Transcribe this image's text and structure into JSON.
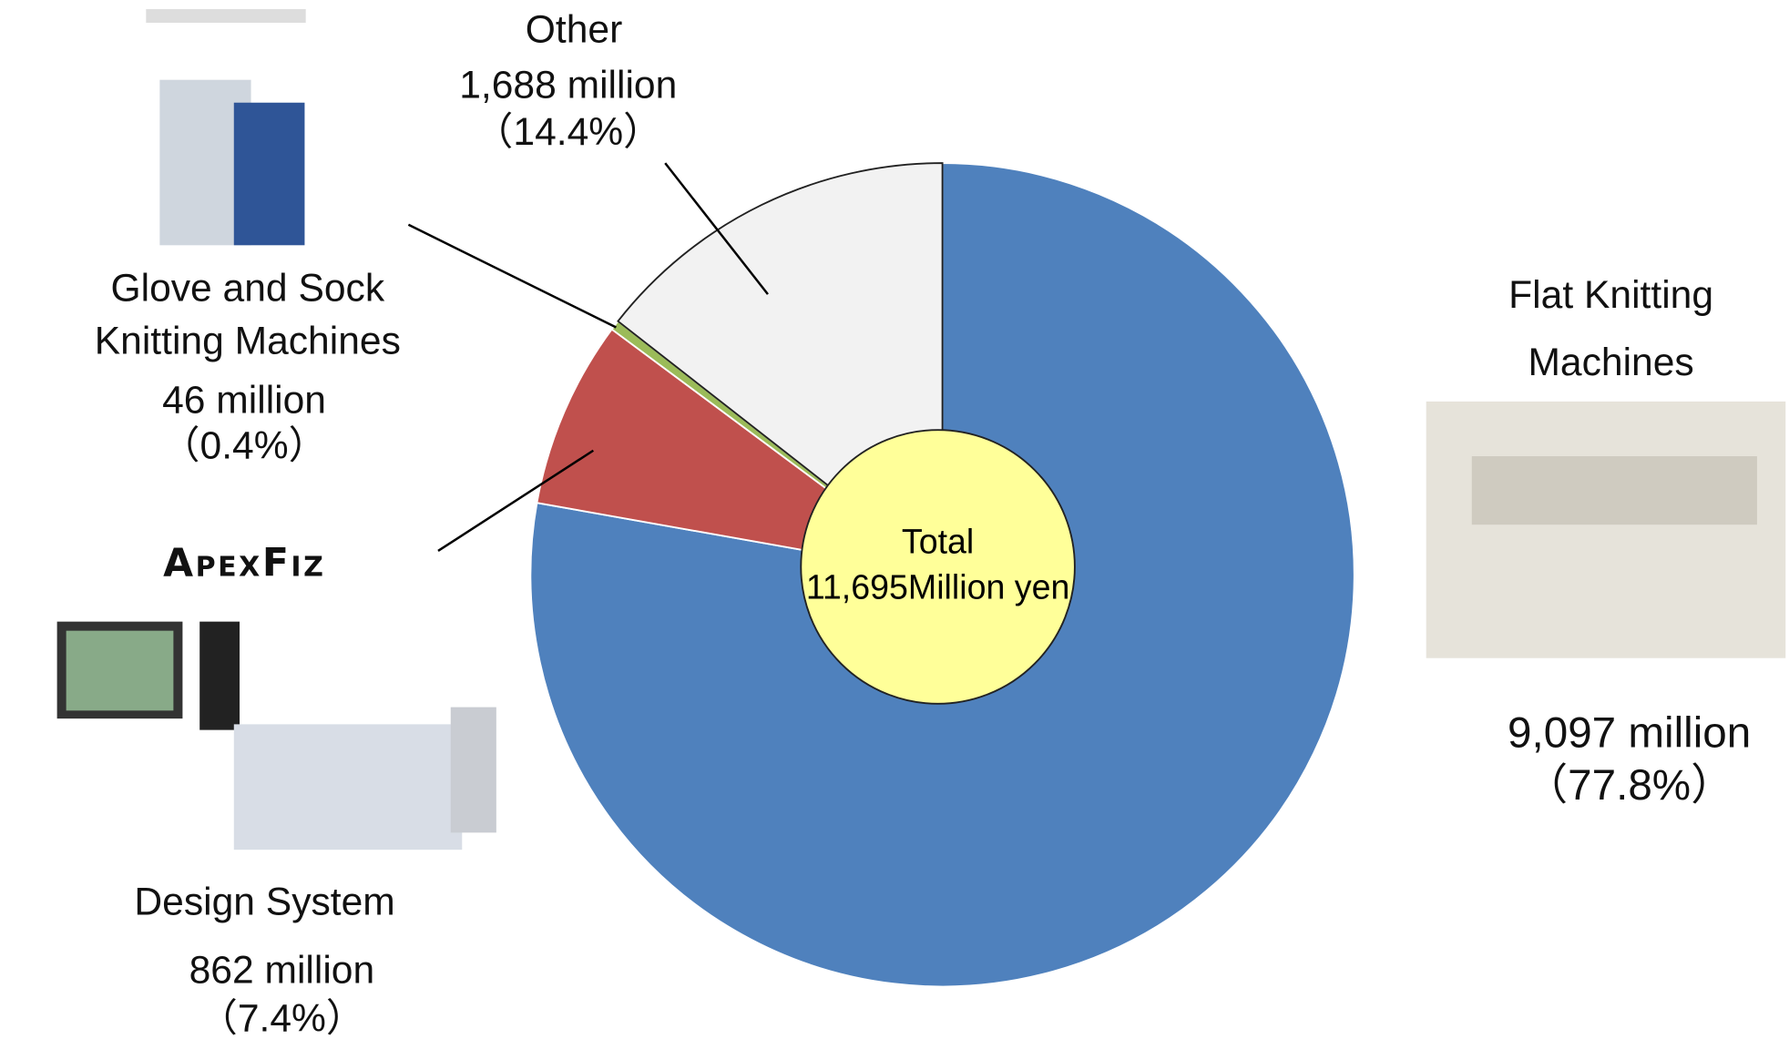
{
  "chart_data": {
    "type": "pie",
    "categories": [
      "Flat Knitting Machines",
      "Design System",
      "Glove and Sock Knitting Machines",
      "Other"
    ],
    "values": [
      9097,
      862,
      46,
      1688
    ],
    "value_labels": [
      "9,097 million",
      "862 million",
      "46 million",
      "1,688 million"
    ],
    "percent_labels": [
      "（77.8%）",
      "（7.4%）",
      "（0.4%）",
      "（14.4%）"
    ],
    "colors": [
      "#4f81bd",
      "#c0504d",
      "#9bbb59",
      "#f2f2f2"
    ],
    "center_label": [
      "Total",
      "11,695Million yen"
    ],
    "logo": "ApexFiz"
  }
}
